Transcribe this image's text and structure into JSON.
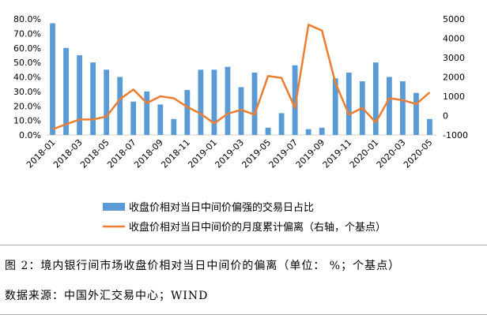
{
  "chart_data": {
    "type": "bar+line",
    "categories": [
      "2018-01",
      "2018-02",
      "2018-03",
      "2018-04",
      "2018-05",
      "2018-06",
      "2018-07",
      "2018-08",
      "2018-09",
      "2018-10",
      "2018-11",
      "2018-12",
      "2019-01",
      "2019-02",
      "2019-03",
      "2019-04",
      "2019-05",
      "2019-06",
      "2019-07",
      "2019-08",
      "2019-09",
      "2019-10",
      "2019-11",
      "2019-12",
      "2020-01",
      "2020-02",
      "2020-03",
      "2020-04",
      "2020-05"
    ],
    "x_tick_labels": [
      "2018-01",
      "2018-03",
      "2018-05",
      "2018-07",
      "2018-09",
      "2018-11",
      "2019-01",
      "2019-03",
      "2019-05",
      "2019-07",
      "2019-09",
      "2019-11",
      "2020-01",
      "2020-03",
      "2020-05"
    ],
    "series": [
      {
        "name": "收盘价相对当日中间价偏强的交易日占比",
        "type": "bar",
        "axis": "left",
        "color": "#5b9bd5",
        "values": [
          0.77,
          0.6,
          0.55,
          0.5,
          0.45,
          0.4,
          0.23,
          0.3,
          0.21,
          0.11,
          0.31,
          0.45,
          0.45,
          0.47,
          0.33,
          0.43,
          0.05,
          0.15,
          0.48,
          0.04,
          0.05,
          0.39,
          0.43,
          0.37,
          0.5,
          0.4,
          0.37,
          0.29,
          0.11
        ]
      },
      {
        "name": "收盘价相对当日中间价的月度累计偏离（右轴，个基点）",
        "type": "line",
        "axis": "right",
        "color": "#ed7d31",
        "values": [
          -700,
          -450,
          -200,
          -200,
          -50,
          850,
          1350,
          650,
          1000,
          900,
          450,
          100,
          -400,
          100,
          300,
          50,
          2050,
          1950,
          400,
          4700,
          4400,
          1700,
          50,
          400,
          -350,
          900,
          800,
          600,
          1200
        ]
      }
    ],
    "y_left": {
      "min": 0,
      "max": 0.8,
      "step": 0.1,
      "tick_labels": [
        "0.0%",
        "10.0%",
        "20.0%",
        "30.0%",
        "40.0%",
        "50.0%",
        "60.0%",
        "70.0%",
        "80.0%"
      ]
    },
    "y_right": {
      "min": -1000,
      "max": 5000,
      "step": 1000,
      "tick_labels": [
        "-1000",
        "0",
        "1000",
        "2000",
        "3000",
        "4000",
        "5000"
      ]
    },
    "grid": false,
    "legend_position": "bottom"
  },
  "caption": {
    "figure": "图 2：境内银行间市场收盘价相对当日中间价的偏离（单位：  %；个基点）",
    "source": "数据来源：中国外汇交易中心；WIND"
  }
}
